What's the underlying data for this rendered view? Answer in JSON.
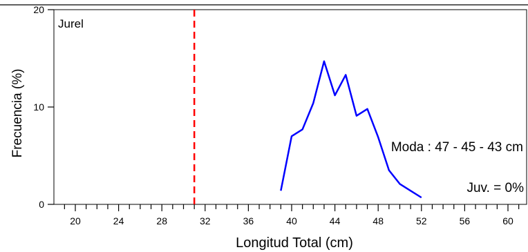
{
  "chart_data": {
    "type": "line",
    "title": "",
    "panel_label": "Jurel",
    "xlabel": "Longitud Total (cm)",
    "ylabel": "Frecuencia (%)",
    "xlim": [
      18,
      61
    ],
    "ylim": [
      0,
      20
    ],
    "x_ticks": [
      20,
      24,
      28,
      32,
      36,
      40,
      44,
      48,
      52,
      56,
      60
    ],
    "x_minor_step": 1,
    "y_ticks": [
      0,
      10,
      20
    ],
    "grid": false,
    "series": [
      {
        "color": "#0000ff",
        "x": [
          39,
          40,
          41,
          42,
          43,
          44,
          45,
          46,
          47,
          48,
          49,
          50,
          51,
          52
        ],
        "y": [
          1.4,
          7.0,
          7.7,
          10.4,
          14.7,
          11.2,
          13.3,
          9.1,
          9.8,
          6.9,
          3.5,
          2.1,
          1.4,
          0.7
        ]
      }
    ],
    "reference_line": {
      "x": 31,
      "color": "#ff0000",
      "style": "dashed"
    },
    "annotations": [
      {
        "text": "Moda : 47 - 45 - 43 cm"
      },
      {
        "text": "Juv. = 0%"
      }
    ]
  }
}
